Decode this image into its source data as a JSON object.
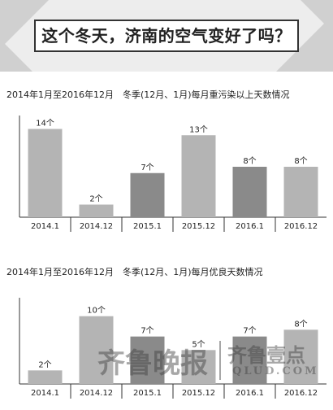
{
  "banner": {
    "title": "这个冬天，济南的空气变好了吗？"
  },
  "charts": [
    {
      "title": "2014年1月至2016年12月　冬季(12月、1月)每月重污染以上天数情况"
    },
    {
      "title": "2014年1月至2016年12月　冬季(12月、1月)每月优良天数情况"
    }
  ],
  "chart_data": [
    {
      "type": "bar",
      "title": "2014年1月至2016年12月　冬季(12月、1月)每月重污染以上天数情况",
      "categories": [
        "2014.1",
        "2014.12",
        "2015.1",
        "2015.12",
        "2016.1",
        "2016.12"
      ],
      "values": [
        14,
        2,
        7,
        13,
        8,
        8
      ],
      "data_labels": [
        "14个",
        "2个",
        "7个",
        "13个",
        "8个",
        "8个"
      ],
      "bar_colors": [
        "#b4b4b4",
        "#b4b4b4",
        "#8a8a8a",
        "#b4b4b4",
        "#8a8a8a",
        "#b4b4b4"
      ],
      "ylim": [
        0,
        16
      ],
      "grid": false
    },
    {
      "type": "bar",
      "title": "2014年1月至2016年12月　冬季(12月、1月)每月优良天数情况",
      "categories": [
        "2014.1",
        "2014.12",
        "2015.1",
        "2015.12",
        "2016.1",
        "2016.12"
      ],
      "values": [
        2,
        10,
        7,
        5,
        7,
        8
      ],
      "data_labels": [
        "2个",
        "10个",
        "7个",
        "5个",
        "7个",
        "8个"
      ],
      "bar_colors": [
        "#b4b4b4",
        "#b4b4b4",
        "#8a8a8a",
        "#b4b4b4",
        "#8a8a8a",
        "#b4b4b4"
      ],
      "ylim": [
        0,
        12
      ],
      "grid": false
    }
  ],
  "watermark": {
    "name": "齐鲁晚报",
    "brand": "齐鲁壹点",
    "site": "QLUD.COM"
  },
  "colors": {
    "banner_bg": "#ededed",
    "bar_light": "#b4b4b4",
    "bar_dark": "#8a8a8a",
    "axis": "#333333"
  }
}
